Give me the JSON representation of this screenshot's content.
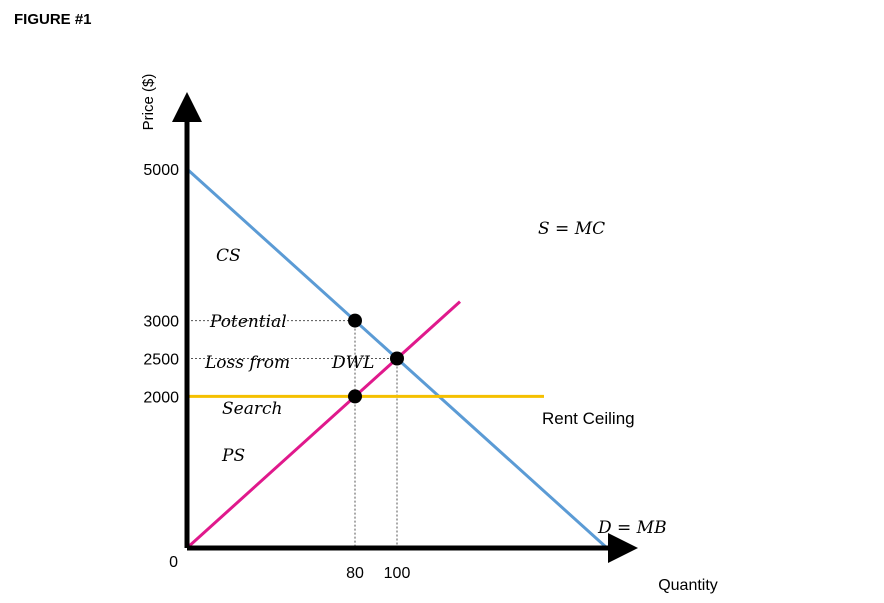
{
  "figure_label": "FIGURE #1",
  "chart_data": {
    "type": "line",
    "title": "",
    "xlabel": "Quantity",
    "ylabel": "Price ($)",
    "x_origin_label": "0",
    "x_ticks": [
      80,
      100
    ],
    "y_ticks": [
      2000,
      2500,
      3000,
      5000
    ],
    "colors": {
      "demand": "#5b9bd5",
      "supply": "#e0198c",
      "ceiling": "#f5c000",
      "axis": "#000000",
      "guide": "#555555"
    },
    "series": [
      {
        "key": "demand",
        "name": "D = MB",
        "x": [
          0,
          200
        ],
        "y": [
          5000,
          0
        ]
      },
      {
        "key": "supply",
        "name": "S = MC",
        "x": [
          0,
          130
        ],
        "y": [
          0,
          3250
        ]
      },
      {
        "key": "ceiling",
        "name": "Rent Ceiling",
        "x": [
          0,
          170
        ],
        "y": [
          2000,
          2000
        ]
      }
    ],
    "points": [
      {
        "x": 80,
        "y": 3000
      },
      {
        "x": 100,
        "y": 2500
      },
      {
        "x": 80,
        "y": 2000
      }
    ],
    "annotations": {
      "cs": "CS",
      "potential": "Potential",
      "loss_from": "Loss from",
      "dwl": "DWL",
      "search": "Search",
      "ps": "PS"
    }
  }
}
